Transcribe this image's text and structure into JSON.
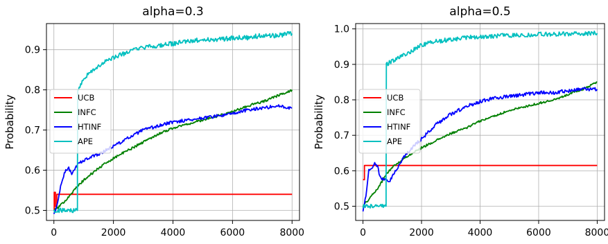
{
  "chart_data": [
    {
      "type": "line",
      "title": "alpha=0.3",
      "xlabel": "",
      "ylabel": "Probability",
      "xlim": [
        -250,
        8250
      ],
      "ylim": [
        0.475,
        0.965
      ],
      "xticks": [
        0,
        2000,
        4000,
        6000,
        8000
      ],
      "yticks": [
        0.5,
        0.6,
        0.7,
        0.8,
        0.9
      ],
      "ytick_labels": [
        "0.5",
        "0.6",
        "0.7",
        "0.8",
        "0.9"
      ],
      "grid": true,
      "legend_position": "center-left",
      "series": [
        {
          "name": "UCB",
          "color": "#ff0000",
          "style": "step",
          "x": [
            0,
            10,
            10,
            50,
            50,
            100,
            100,
            8000
          ],
          "y": [
            0.5,
            0.5,
            0.545,
            0.545,
            0.51,
            0.51,
            0.54,
            0.54
          ]
        },
        {
          "name": "INFC",
          "color": "#008000",
          "noise": 0.003,
          "x": [
            0,
            200,
            500,
            800,
            1000,
            1500,
            2000,
            2500,
            3000,
            3500,
            4000,
            4500,
            5000,
            5500,
            6000,
            6500,
            7000,
            7500,
            8000
          ],
          "y": [
            0.5,
            0.51,
            0.535,
            0.56,
            0.575,
            0.605,
            0.63,
            0.65,
            0.67,
            0.69,
            0.705,
            0.715,
            0.725,
            0.735,
            0.745,
            0.76,
            0.77,
            0.785,
            0.8
          ]
        },
        {
          "name": "HTINF",
          "color": "#0000ff",
          "noise": 0.004,
          "x": [
            0,
            100,
            200,
            300,
            400,
            500,
            600,
            700,
            800,
            1000,
            1500,
            2000,
            2500,
            3000,
            3500,
            4000,
            4500,
            5000,
            5500,
            6000,
            6500,
            7000,
            7500,
            8000
          ],
          "y": [
            0.49,
            0.51,
            0.55,
            0.58,
            0.6,
            0.605,
            0.59,
            0.6,
            0.615,
            0.625,
            0.64,
            0.66,
            0.68,
            0.7,
            0.71,
            0.72,
            0.725,
            0.73,
            0.735,
            0.74,
            0.75,
            0.755,
            0.76,
            0.755
          ]
        },
        {
          "name": "APE",
          "color": "#00bfbf",
          "noise": 0.006,
          "x": [
            0,
            790,
            790,
            800,
            1000,
            1500,
            2000,
            2500,
            3000,
            3500,
            4000,
            4500,
            5000,
            5500,
            6000,
            6500,
            7000,
            7500,
            8000
          ],
          "y": [
            0.5,
            0.5,
            0.59,
            0.8,
            0.83,
            0.86,
            0.88,
            0.895,
            0.905,
            0.91,
            0.915,
            0.92,
            0.925,
            0.925,
            0.93,
            0.93,
            0.935,
            0.935,
            0.94
          ]
        }
      ]
    },
    {
      "type": "line",
      "title": "alpha=0.5",
      "xlabel": "",
      "ylabel": "Probability",
      "xlim": [
        -250,
        8250
      ],
      "ylim": [
        0.46,
        1.015
      ],
      "xticks": [
        0,
        2000,
        4000,
        6000,
        8000
      ],
      "yticks": [
        0.5,
        0.6,
        0.7,
        0.8,
        0.9,
        1.0
      ],
      "ytick_labels": [
        "0.5",
        "0.6",
        "0.7",
        "0.8",
        "0.9",
        "1.0"
      ],
      "grid": true,
      "legend_position": "center-left",
      "series": [
        {
          "name": "UCB",
          "color": "#ff0000",
          "style": "step",
          "x": [
            0,
            50,
            50,
            8000
          ],
          "y": [
            0.575,
            0.575,
            0.615,
            0.615
          ]
        },
        {
          "name": "INFC",
          "color": "#008000",
          "noise": 0.003,
          "x": [
            0,
            200,
            500,
            800,
            1000,
            1500,
            2000,
            2500,
            3000,
            3500,
            4000,
            4500,
            5000,
            5500,
            6000,
            6500,
            7000,
            7500,
            8000
          ],
          "y": [
            0.5,
            0.52,
            0.55,
            0.59,
            0.61,
            0.64,
            0.665,
            0.685,
            0.705,
            0.72,
            0.74,
            0.755,
            0.77,
            0.78,
            0.79,
            0.8,
            0.815,
            0.83,
            0.85
          ]
        },
        {
          "name": "HTINF",
          "color": "#0000ff",
          "noise": 0.005,
          "x": [
            0,
            100,
            200,
            400,
            500,
            600,
            700,
            800,
            900,
            1000,
            1500,
            2000,
            2500,
            3000,
            3500,
            4000,
            4500,
            5000,
            5500,
            6000,
            6500,
            7000,
            7500,
            8000
          ],
          "y": [
            0.49,
            0.53,
            0.6,
            0.62,
            0.61,
            0.58,
            0.575,
            0.58,
            0.57,
            0.585,
            0.65,
            0.69,
            0.73,
            0.76,
            0.78,
            0.795,
            0.805,
            0.81,
            0.815,
            0.82,
            0.82,
            0.825,
            0.83,
            0.83
          ]
        },
        {
          "name": "APE",
          "color": "#00bfbf",
          "noise": 0.006,
          "x": [
            0,
            790,
            790,
            800,
            1000,
            1500,
            2000,
            2500,
            3000,
            3500,
            4000,
            4500,
            5000,
            5500,
            6000,
            6500,
            7000,
            7500,
            8000
          ],
          "y": [
            0.5,
            0.5,
            0.55,
            0.9,
            0.91,
            0.93,
            0.955,
            0.965,
            0.97,
            0.975,
            0.978,
            0.98,
            0.982,
            0.983,
            0.985,
            0.985,
            0.986,
            0.987,
            0.988
          ]
        }
      ]
    }
  ]
}
